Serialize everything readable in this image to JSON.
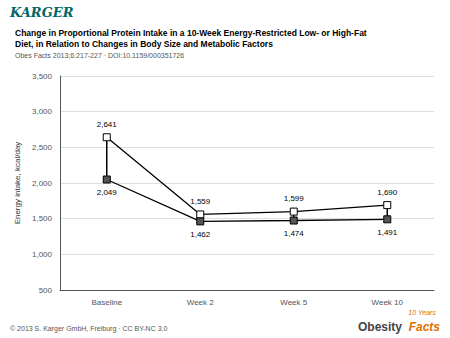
{
  "chart_data": {
    "type": "line",
    "title": "Change in Proportional Protein Intake in a 10-Week Energy-Restricted Low- or High-Fat\nDiet, in Relation to Changes in Body Size and Metabolic Factors",
    "subtitle": "Obes Facts 2013;6:217-227 · DOI:10.1159/000351726",
    "categories": [
      "Baseline",
      "Week 2",
      "Week 5",
      "Week 10"
    ],
    "ylabel": "Energy intake, kcal/day",
    "color": "#000000",
    "series": [
      {
        "values": [
          2641,
          1559,
          1599,
          1690
        ],
        "value_labels": [
          "2,641",
          "1,559",
          "1,599",
          "1,690"
        ],
        "color": "#ffffff",
        "marker": "square"
      },
      {
        "values": [
          2049,
          1462,
          1474,
          1491
        ],
        "value_labels": [
          "2,049",
          "1,462",
          "1,474",
          "1,491"
        ],
        "color": "#555555",
        "marker": "square"
      }
    ],
    "ylim": [
      500,
      3500
    ],
    "yticks": [
      500,
      {
        "value": 1000,
        "label": "1,000"
      },
      {
        "value": 1500,
        "label": "1,500"
      },
      {
        "value": 2000,
        "label": "2,000"
      },
      {
        "value": 2500,
        "label": "2,500"
      },
      {
        "value": 3000,
        "label": "3,000"
      },
      {
        "value": 3500,
        "label": "3,500"
      }
    ],
    "grid": true,
    "data_labels": true,
    "annotations": [
      {
        "text": "KARGER",
        "color": "#006666"
      },
      {
        "text": "© 2013 S. Karger GmbH, Freiburg · CC BY-NC 3.0",
        "color": "#555555"
      },
      {
        "text": "10 Years",
        "color": "#e07000"
      },
      {
        "text": "Obesity",
        "color": "#444444"
      },
      {
        "text": "Facts",
        "color": "#e07000"
      }
    ]
  }
}
